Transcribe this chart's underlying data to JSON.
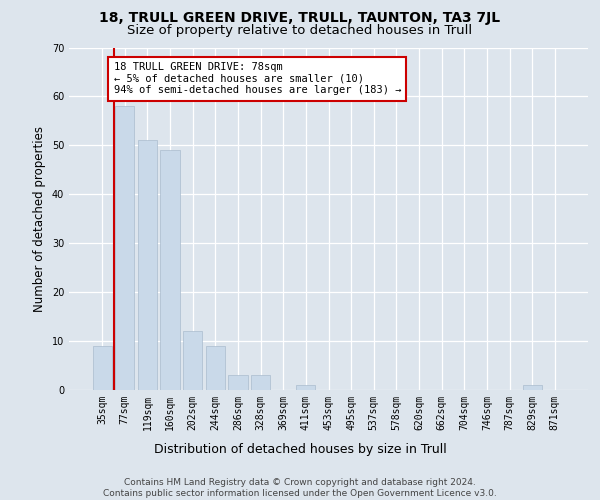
{
  "title_line1": "18, TRULL GREEN DRIVE, TRULL, TAUNTON, TA3 7JL",
  "title_line2": "Size of property relative to detached houses in Trull",
  "xlabel": "Distribution of detached houses by size in Trull",
  "ylabel": "Number of detached properties",
  "footnote": "Contains HM Land Registry data © Crown copyright and database right 2024.\nContains public sector information licensed under the Open Government Licence v3.0.",
  "bar_labels": [
    "35sqm",
    "77sqm",
    "119sqm",
    "160sqm",
    "202sqm",
    "244sqm",
    "286sqm",
    "328sqm",
    "369sqm",
    "411sqm",
    "453sqm",
    "495sqm",
    "537sqm",
    "578sqm",
    "620sqm",
    "662sqm",
    "704sqm",
    "746sqm",
    "787sqm",
    "829sqm",
    "871sqm"
  ],
  "bar_values": [
    9,
    58,
    51,
    49,
    12,
    9,
    3,
    3,
    0,
    1,
    0,
    0,
    0,
    0,
    0,
    0,
    0,
    0,
    0,
    1,
    0
  ],
  "bar_color": "#c9d9e9",
  "bar_edge_color": "#aabcce",
  "vline_color": "#cc0000",
  "annotation_text": "18 TRULL GREEN DRIVE: 78sqm\n← 5% of detached houses are smaller (10)\n94% of semi-detached houses are larger (183) →",
  "annotation_box_facecolor": "#ffffff",
  "annotation_box_edge": "#cc0000",
  "ylim": [
    0,
    70
  ],
  "yticks": [
    0,
    10,
    20,
    30,
    40,
    50,
    60,
    70
  ],
  "background_color": "#dde5ed",
  "plot_background": "#dde5ed",
  "grid_color": "#ffffff",
  "title1_fontsize": 10,
  "title2_fontsize": 9.5,
  "ylabel_fontsize": 8.5,
  "xlabel_fontsize": 9,
  "tick_fontsize": 7,
  "annot_fontsize": 7.5,
  "footnote_fontsize": 6.5
}
